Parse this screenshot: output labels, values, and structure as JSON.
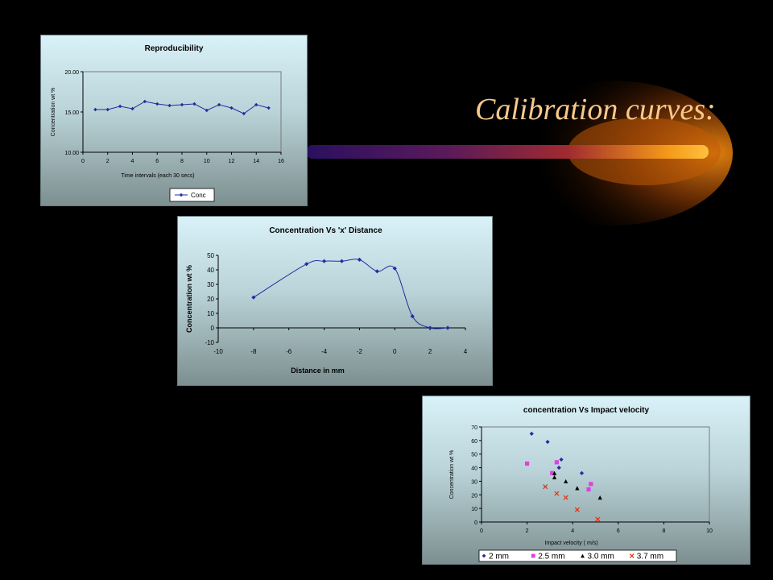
{
  "slide": {
    "title": "Calibration curves:"
  },
  "chart_data": [
    {
      "type": "line",
      "title": "Reproducibility",
      "xlabel": "Time intervals (each 30 secs)",
      "ylabel": "Concentration wt %",
      "xlim": [
        0,
        16
      ],
      "ylim": [
        10.0,
        20.0
      ],
      "xticks": [
        "0",
        "2",
        "4",
        "6",
        "8",
        "10",
        "12",
        "14",
        "16"
      ],
      "yticks": [
        "10.00",
        "15.00",
        "20.00"
      ],
      "legend_position": "bottom",
      "series": [
        {
          "name": "Conc",
          "color": "#1f2f9e",
          "x": [
            1,
            2,
            3,
            4,
            5,
            6,
            7,
            8,
            9,
            10,
            11,
            12,
            13,
            14,
            15
          ],
          "y": [
            15.3,
            15.3,
            15.7,
            15.4,
            16.3,
            16.0,
            15.8,
            15.9,
            16.0,
            15.2,
            15.9,
            15.5,
            14.8,
            15.9,
            15.5
          ]
        }
      ]
    },
    {
      "type": "line",
      "title": "Concentration Vs 'x' Distance",
      "xlabel": "Distance in mm",
      "ylabel": "Concentration wt %",
      "xlim": [
        -10,
        4
      ],
      "ylim": [
        -10,
        50
      ],
      "xticks": [
        "-10",
        "-8",
        "-6",
        "-4",
        "-2",
        "0",
        "2",
        "4"
      ],
      "yticks": [
        "-10",
        "0",
        "10",
        "20",
        "30",
        "40",
        "50"
      ],
      "series": [
        {
          "color": "#1f2f9e",
          "x": [
            -8,
            -5,
            -4,
            -3,
            -2,
            -1,
            0,
            1,
            2,
            3
          ],
          "y": [
            21,
            44,
            46,
            46,
            47,
            39,
            41,
            8,
            0,
            0
          ]
        }
      ]
    },
    {
      "type": "scatter",
      "title": "concentration Vs Impact velocity",
      "xlabel": "Impact velocity ( m/s)",
      "ylabel": "Concentration wt %",
      "xlim": [
        0,
        10
      ],
      "ylim": [
        0,
        70
      ],
      "xticks": [
        "0",
        "2",
        "4",
        "6",
        "8",
        "10"
      ],
      "yticks": [
        "0",
        "10",
        "20",
        "30",
        "40",
        "50",
        "60",
        "70"
      ],
      "legend_position": "bottom",
      "series": [
        {
          "name": "2 mm",
          "color": "#1f2f9e",
          "marker": "diamond",
          "x": [
            2.2,
            2.9,
            3.5,
            3.4,
            4.4
          ],
          "y": [
            65,
            59,
            46,
            40,
            36
          ]
        },
        {
          "name": "2.5 mm",
          "color": "#e040e0",
          "marker": "square",
          "x": [
            2.0,
            3.3,
            3.1,
            4.8,
            4.7
          ],
          "y": [
            43,
            44,
            36,
            28,
            24
          ]
        },
        {
          "name": "3.0 mm",
          "color": "#000000",
          "marker": "triangle",
          "x": [
            3.2,
            3.2,
            3.7,
            4.2,
            5.2
          ],
          "y": [
            36,
            33,
            30,
            25,
            18
          ]
        },
        {
          "name": "3.7 mm",
          "color": "#e03010",
          "marker": "x",
          "x": [
            2.8,
            3.3,
            3.7,
            4.2,
            5.1
          ],
          "y": [
            26,
            21,
            18,
            9,
            2
          ]
        }
      ]
    }
  ]
}
